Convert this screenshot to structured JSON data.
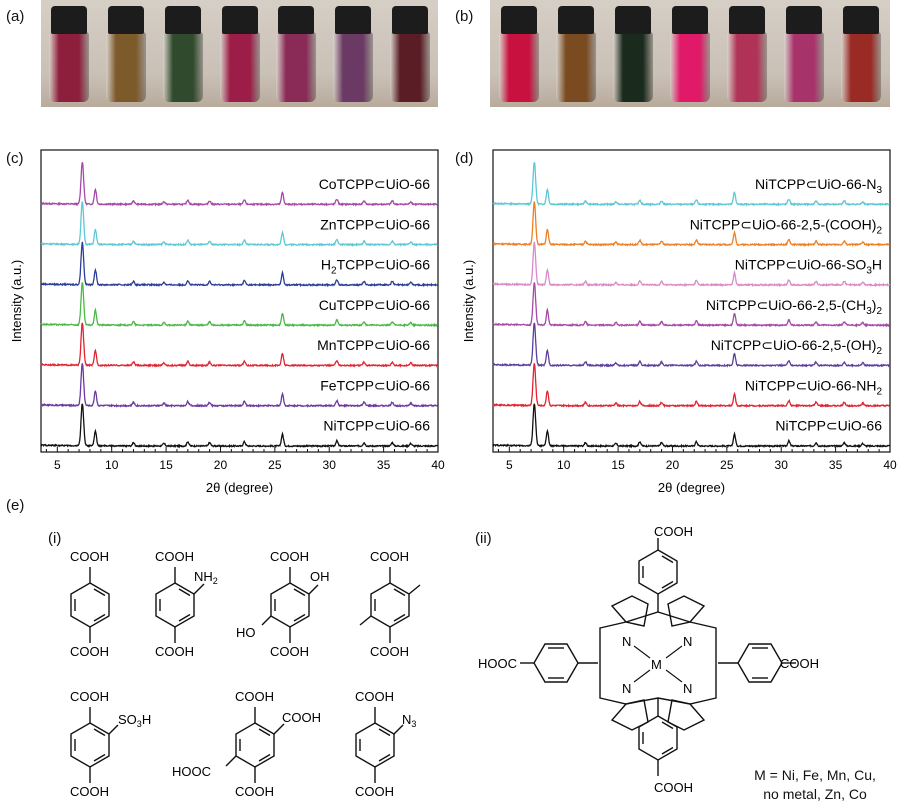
{
  "panels": {
    "a": "(a)",
    "b": "(b)",
    "c": "(c)",
    "d": "(d)",
    "e": "(e)",
    "i": "(i)",
    "ii": "(ii)"
  },
  "photo_a": {
    "liquid_colors": [
      "#8e1f3c",
      "#7d5a2a",
      "#2f4a2c",
      "#9c1e48",
      "#8a2a56",
      "#6a3a64",
      "#5a1c25"
    ]
  },
  "photo_b": {
    "liquid_colors": [
      "#c8113e",
      "#7a4a20",
      "#1a2a1c",
      "#e01a68",
      "#b03256",
      "#a8326a",
      "#9a2a24"
    ]
  },
  "chart_data": [
    {
      "type": "line",
      "panel": "(c)",
      "xlabel": "2θ (degree)",
      "ylabel": "Intensity (a.u.)",
      "xlim": [
        3.5,
        40
      ],
      "xticks": [
        5,
        10,
        15,
        20,
        25,
        30,
        35,
        40
      ],
      "peaks_2theta": [
        7.3,
        8.5,
        12.0,
        14.8,
        17.0,
        19.0,
        22.2,
        25.7,
        30.7,
        33.2,
        35.8,
        37.5
      ],
      "series": [
        {
          "name": "CoTCPP⊂UiO-66",
          "color": "#a64aa6"
        },
        {
          "name": "ZnTCPP⊂UiO-66",
          "color": "#5ec8d4"
        },
        {
          "name": "H2TCPP⊂UiO-66",
          "color": "#2b3f9a"
        },
        {
          "name": "CuTCPP⊂UiO-66",
          "color": "#4cb848"
        },
        {
          "name": "MnTCPP⊂UiO-66",
          "color": "#e02431"
        },
        {
          "name": "FeTCPP⊂UiO-66",
          "color": "#6a3aa0"
        },
        {
          "name": "NiTCPP⊂UiO-66",
          "color": "#111111"
        }
      ]
    },
    {
      "type": "line",
      "panel": "(d)",
      "xlabel": "2θ (degree)",
      "ylabel": "Intensity (a.u.)",
      "xlim": [
        3.5,
        40
      ],
      "xticks": [
        5,
        10,
        15,
        20,
        25,
        30,
        35,
        40
      ],
      "peaks_2theta": [
        7.3,
        8.5,
        12.0,
        14.8,
        17.0,
        19.0,
        22.2,
        25.7,
        30.7,
        33.2,
        35.8,
        37.5
      ],
      "series": [
        {
          "name": "NiTCPP⊂UiO-66-N3",
          "color": "#5ec8d4"
        },
        {
          "name": "NiTCPP⊂UiO-66-2,5-(COOH)2",
          "color": "#f07f22"
        },
        {
          "name": "NiTCPP⊂UiO-66-SO3H",
          "color": "#d98ac8"
        },
        {
          "name": "NiTCPP⊂UiO-66-2,5-(CH3)2",
          "color": "#a64aa6"
        },
        {
          "name": "NiTCPP⊂UiO-66-2,5-(OH)2",
          "color": "#5b3f9c"
        },
        {
          "name": "NiTCPP⊂UiO-66-NH2",
          "color": "#e02431"
        },
        {
          "name": "NiTCPP⊂UiO-66",
          "color": "#111111"
        }
      ]
    }
  ],
  "chem": {
    "cooh": "COOH",
    "hooc": "HOOC",
    "nh2": "NH",
    "oh": "OH",
    "ho": "HO",
    "so3h": "SO",
    "n3": "N",
    "n": "N",
    "m": "M",
    "mlist_line1": "M = Ni, Fe, Mn, Cu,",
    "mlist_line2": "no metal, Zn, Co"
  }
}
